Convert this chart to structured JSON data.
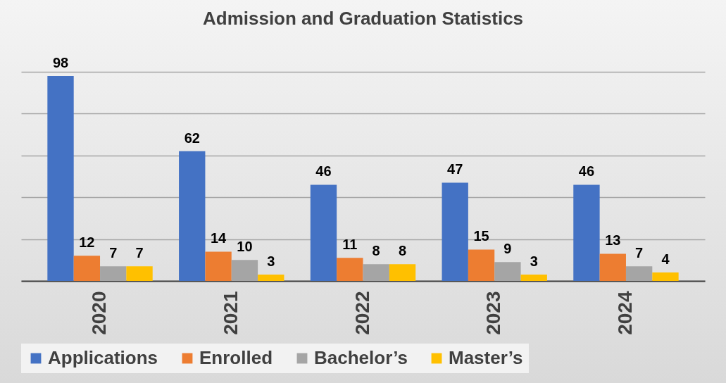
{
  "chart_data": {
    "type": "bar",
    "title": "Admission and Graduation Statistics",
    "categories": [
      "2020",
      "2021",
      "2022",
      "2023",
      "2024"
    ],
    "series": [
      {
        "name": "Applications",
        "color": "#4472c4",
        "values": [
          98,
          62,
          46,
          47,
          46
        ]
      },
      {
        "name": "Enrolled",
        "color": "#ed7d31",
        "values": [
          12,
          14,
          11,
          15,
          13
        ]
      },
      {
        "name": "Bachelor’s",
        "color": "#a5a5a5",
        "values": [
          7,
          10,
          8,
          9,
          7
        ]
      },
      {
        "name": "Master’s",
        "color": "#ffc000",
        "values": [
          7,
          3,
          8,
          3,
          4
        ]
      }
    ],
    "ylim": [
      0,
      100
    ],
    "yticks": [
      {
        "value": 0,
        "label": null
      },
      {
        "value": 20,
        "label": null
      },
      {
        "value": 40,
        "label": null
      },
      {
        "value": 60,
        "label": null
      },
      {
        "value": 80,
        "label": null
      },
      {
        "value": 100,
        "label": null
      }
    ],
    "grid": "y",
    "tick_labels": "x",
    "data_labels": true,
    "legend": "bottom"
  }
}
